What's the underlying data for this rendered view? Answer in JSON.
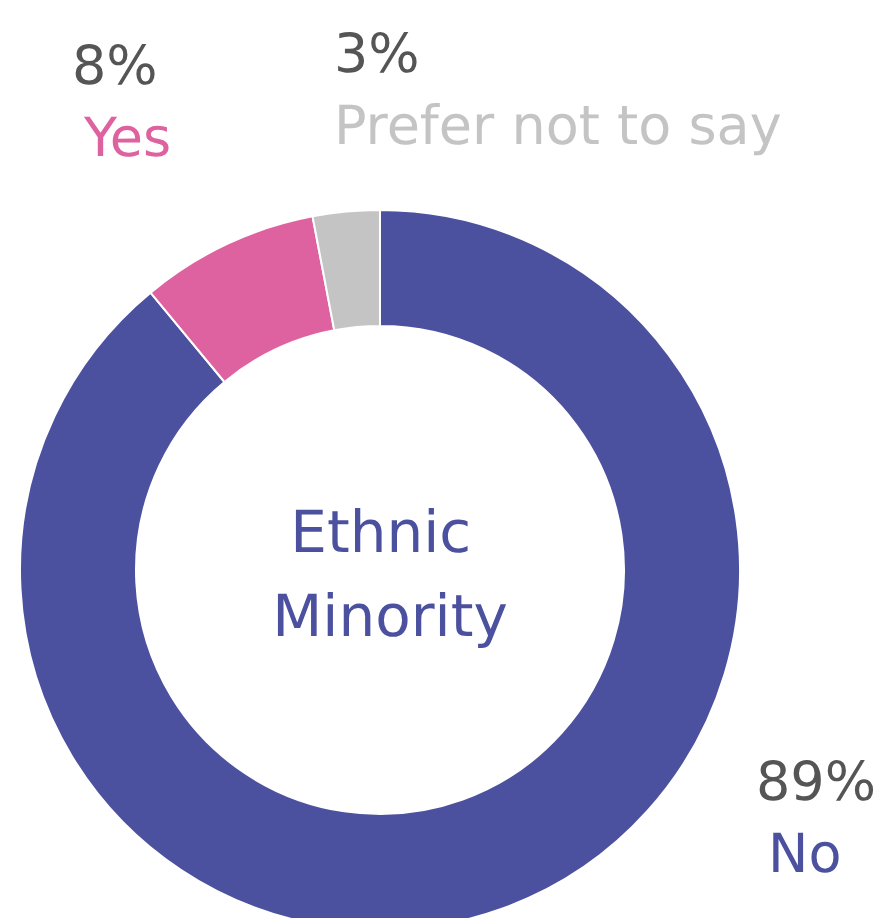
{
  "chart_data": {
    "type": "donut",
    "title": "Ethnic Minority",
    "categories": [
      "No",
      "Yes",
      "Prefer not to say"
    ],
    "values": [
      89,
      8,
      3
    ],
    "value_labels": [
      "89%",
      "8%",
      "3%"
    ],
    "colors": [
      "#4b519e",
      "#df62a0",
      "#c4c4c4"
    ],
    "legend": false
  }
}
